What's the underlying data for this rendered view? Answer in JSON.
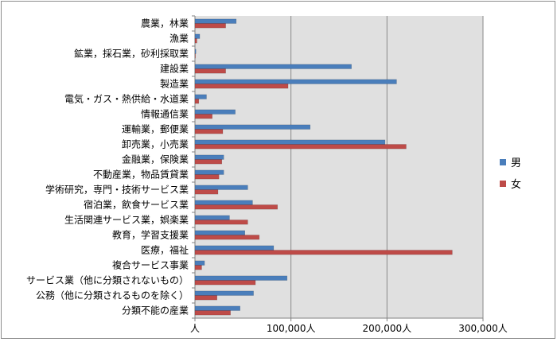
{
  "chart_data": {
    "type": "bar",
    "orientation": "horizontal",
    "categories": [
      "農業，林業",
      "漁業",
      "鉱業，採石業，砂利採取業",
      "建設業",
      "製造業",
      "電気・ガス・熱供給・水道業",
      "情報通信業",
      "運輸業，郵便業",
      "卸売業，小売業",
      "金融業，保険業",
      "不動産業，物品賃貸業",
      "学術研究，専門・技術サービス業",
      "宿泊業，飲食サービス業",
      "生活関連サービス業，娯楽業",
      "教育，学習支援業",
      "医療，福祉",
      "複合サービス事業",
      "サービス業（他に分類されないもの）",
      "公務（他に分類されるものを除く）",
      "分類不能の産業"
    ],
    "series": [
      {
        "name": "男",
        "color": "#4a7ebb",
        "values": [
          43000,
          5000,
          1000,
          163000,
          210000,
          12000,
          42000,
          120000,
          198000,
          30000,
          30000,
          55000,
          60000,
          36000,
          52000,
          82000,
          10000,
          96000,
          61000,
          47000
        ]
      },
      {
        "name": "女",
        "color": "#be4b48",
        "values": [
          32000,
          2000,
          300,
          32000,
          97000,
          4000,
          18000,
          29000,
          220000,
          28000,
          25000,
          24000,
          86000,
          55000,
          67000,
          268000,
          7000,
          63000,
          23000,
          37000
        ]
      }
    ],
    "xlim": [
      0,
      300000
    ],
    "x_ticks": [
      0,
      100000,
      200000,
      300000
    ],
    "x_tick_labels": [
      "人",
      "100,000人",
      "200,000人",
      "300,000人"
    ],
    "grid": true,
    "legend_position": "right",
    "plot_background": "#e0e0e0"
  }
}
